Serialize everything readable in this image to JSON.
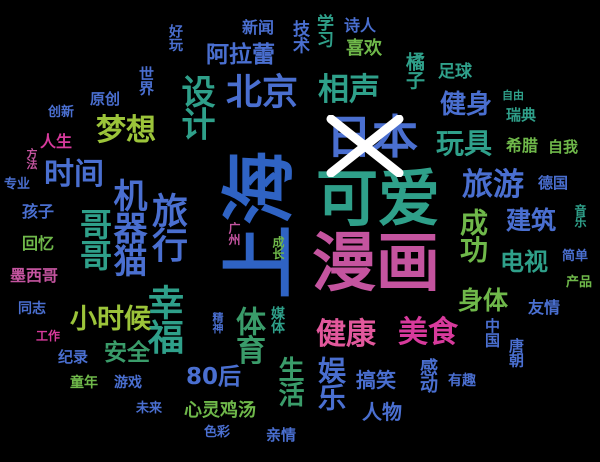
{
  "background": "#000000",
  "words": [
    {
      "text": "上海",
      "color": "#2f63c4",
      "vertical": false,
      "rotate": -90
    },
    {
      "text": "漫画",
      "color": "#c4549f",
      "vertical": false,
      "rotate": 0
    },
    {
      "text": "可爱",
      "color": "#2fa08a",
      "vertical": false,
      "rotate": 0
    },
    {
      "text": "日本",
      "color": "#4a6fd0",
      "vertical": false,
      "rotate": 0
    },
    {
      "text": "机器猫",
      "color": "#4a6fd0",
      "vertical": true,
      "rotate": 0
    },
    {
      "text": "幸福",
      "color": "#2fa08a",
      "vertical": true,
      "rotate": 0
    },
    {
      "text": "旅行",
      "color": "#4a6fd0",
      "vertical": true,
      "rotate": 0
    },
    {
      "text": "设计",
      "color": "#2fa08a",
      "vertical": true,
      "rotate": 0
    },
    {
      "text": "北京",
      "color": "#4a6fd0",
      "vertical": false,
      "rotate": 0
    },
    {
      "text": "相声",
      "color": "#2fa08a",
      "vertical": false,
      "rotate": 0
    },
    {
      "text": "哥哥",
      "color": "#2fa08a",
      "vertical": true,
      "rotate": 0
    },
    {
      "text": "梦想",
      "color": "#9cc43a",
      "vertical": false,
      "rotate": 0
    },
    {
      "text": "时间",
      "color": "#4a6fd0",
      "vertical": false,
      "rotate": 0
    },
    {
      "text": "旅游",
      "color": "#4a6fd0",
      "vertical": false,
      "rotate": 0
    },
    {
      "text": "成功",
      "color": "#6fb84a",
      "vertical": true,
      "rotate": 0
    },
    {
      "text": "健康",
      "color": "#e2589c",
      "vertical": false,
      "rotate": 0
    },
    {
      "text": "美食",
      "color": "#d83a9c",
      "vertical": false,
      "rotate": 0
    },
    {
      "text": "体育",
      "color": "#3a9c6a",
      "vertical": true,
      "rotate": 0
    },
    {
      "text": "小时候",
      "color": "#9cc43a",
      "vertical": false,
      "rotate": 0
    },
    {
      "text": "健身",
      "color": "#4a6fd0",
      "vertical": false,
      "rotate": 0
    },
    {
      "text": "玩具",
      "color": "#2fa08a",
      "vertical": false,
      "rotate": 0
    },
    {
      "text": "建筑",
      "color": "#4a6fd0",
      "vertical": false,
      "rotate": 0
    },
    {
      "text": "身体",
      "color": "#6fb84a",
      "vertical": false,
      "rotate": 0
    },
    {
      "text": "电视",
      "color": "#2fa08a",
      "vertical": false,
      "rotate": 0
    },
    {
      "text": "阿拉蕾",
      "color": "#4a6fd0",
      "vertical": false,
      "rotate": 0
    },
    {
      "text": "安全",
      "color": "#3a9c6a",
      "vertical": false,
      "rotate": 0
    },
    {
      "text": "80后",
      "color": "#4a6fd0",
      "vertical": false,
      "rotate": 0
    },
    {
      "text": "娱乐",
      "color": "#4a6fd0",
      "vertical": true,
      "rotate": 0
    },
    {
      "text": "生活",
      "color": "#3a9c6a",
      "vertical": true,
      "rotate": 0
    },
    {
      "text": "搞笑",
      "color": "#4a6fd0",
      "vertical": false,
      "rotate": 0
    },
    {
      "text": "感动",
      "color": "#4a6fd0",
      "vertical": true,
      "rotate": 0
    },
    {
      "text": "人物",
      "color": "#4a6fd0",
      "vertical": false,
      "rotate": 0
    },
    {
      "text": "心灵鸡汤",
      "color": "#6fb84a",
      "vertical": false,
      "rotate": 0
    },
    {
      "text": "喜欢",
      "color": "#6fb84a",
      "vertical": false,
      "rotate": 0
    },
    {
      "text": "学习",
      "color": "#2fa08a",
      "vertical": true,
      "rotate": 0
    },
    {
      "text": "技术",
      "color": "#4a6fd0",
      "vertical": true,
      "rotate": 0
    },
    {
      "text": "新闻",
      "color": "#4a6fd0",
      "vertical": false,
      "rotate": 0
    },
    {
      "text": "诗人",
      "color": "#4a6fd0",
      "vertical": false,
      "rotate": 0
    },
    {
      "text": "橘子",
      "color": "#2fa08a",
      "vertical": true,
      "rotate": 0
    },
    {
      "text": "足球",
      "color": "#2fa08a",
      "vertical": false,
      "rotate": 0
    },
    {
      "text": "希腊",
      "color": "#6fb84a",
      "vertical": false,
      "rotate": 0
    },
    {
      "text": "自我",
      "color": "#6fb84a",
      "vertical": false,
      "rotate": 0
    },
    {
      "text": "德国",
      "color": "#4a6fd0",
      "vertical": false,
      "rotate": 0
    },
    {
      "text": "瑞典",
      "color": "#2fa08a",
      "vertical": false,
      "rotate": 0
    },
    {
      "text": "自由",
      "color": "#2fa08a",
      "vertical": false,
      "rotate": 0
    },
    {
      "text": "音乐",
      "color": "#2fa08a",
      "vertical": true,
      "rotate": 0
    },
    {
      "text": "简单",
      "color": "#4a6fd0",
      "vertical": false,
      "rotate": 0
    },
    {
      "text": "产品",
      "color": "#6fb84a",
      "vertical": false,
      "rotate": 0
    },
    {
      "text": "友情",
      "color": "#4a6fd0",
      "vertical": false,
      "rotate": 0
    },
    {
      "text": "中国",
      "color": "#4a6fd0",
      "vertical": true,
      "rotate": 0
    },
    {
      "text": "唐朝",
      "color": "#4a6fd0",
      "vertical": true,
      "rotate": 0
    },
    {
      "text": "有趣",
      "color": "#4a6fd0",
      "vertical": false,
      "rotate": 0
    },
    {
      "text": "亲情",
      "color": "#4a6fd0",
      "vertical": false,
      "rotate": 0
    },
    {
      "text": "色彩",
      "color": "#4a6fd0",
      "vertical": false,
      "rotate": 0
    },
    {
      "text": "未来",
      "color": "#4a6fd0",
      "vertical": false,
      "rotate": 0
    },
    {
      "text": "游戏",
      "color": "#4a6fd0",
      "vertical": false,
      "rotate": 0
    },
    {
      "text": "童年",
      "color": "#6fb84a",
      "vertical": false,
      "rotate": 0
    },
    {
      "text": "纪录",
      "color": "#4a6fd0",
      "vertical": false,
      "rotate": 0
    },
    {
      "text": "工作",
      "color": "#d83a9c",
      "vertical": false,
      "rotate": 0
    },
    {
      "text": "同志",
      "color": "#4a6fd0",
      "vertical": false,
      "rotate": 0
    },
    {
      "text": "墨西哥",
      "color": "#c4549f",
      "vertical": false,
      "rotate": 0
    },
    {
      "text": "回忆",
      "color": "#6fb84a",
      "vertical": false,
      "rotate": 0
    },
    {
      "text": "孩子",
      "color": "#4a6fd0",
      "vertical": false,
      "rotate": 0
    },
    {
      "text": "专业",
      "color": "#4a6fd0",
      "vertical": false,
      "rotate": 0
    },
    {
      "text": "方法",
      "color": "#c4549f",
      "vertical": true,
      "rotate": 0
    },
    {
      "text": "人生",
      "color": "#d83a9c",
      "vertical": false,
      "rotate": 0
    },
    {
      "text": "创新",
      "color": "#4a6fd0",
      "vertical": false,
      "rotate": 0
    },
    {
      "text": "原创",
      "color": "#4a6fd0",
      "vertical": false,
      "rotate": 0
    },
    {
      "text": "世界",
      "color": "#4a6fd0",
      "vertical": true,
      "rotate": 0
    },
    {
      "text": "好玩",
      "color": "#4a6fd0",
      "vertical": true,
      "rotate": 0
    },
    {
      "text": "广州",
      "color": "#c4549f",
      "vertical": true,
      "rotate": 0
    },
    {
      "text": "成长",
      "color": "#6fb84a",
      "vertical": true,
      "rotate": 0
    },
    {
      "text": "精神",
      "color": "#4a6fd0",
      "vertical": true,
      "rotate": 0
    },
    {
      "text": "媒体",
      "color": "#2fa08a",
      "vertical": true,
      "rotate": 0
    }
  ]
}
